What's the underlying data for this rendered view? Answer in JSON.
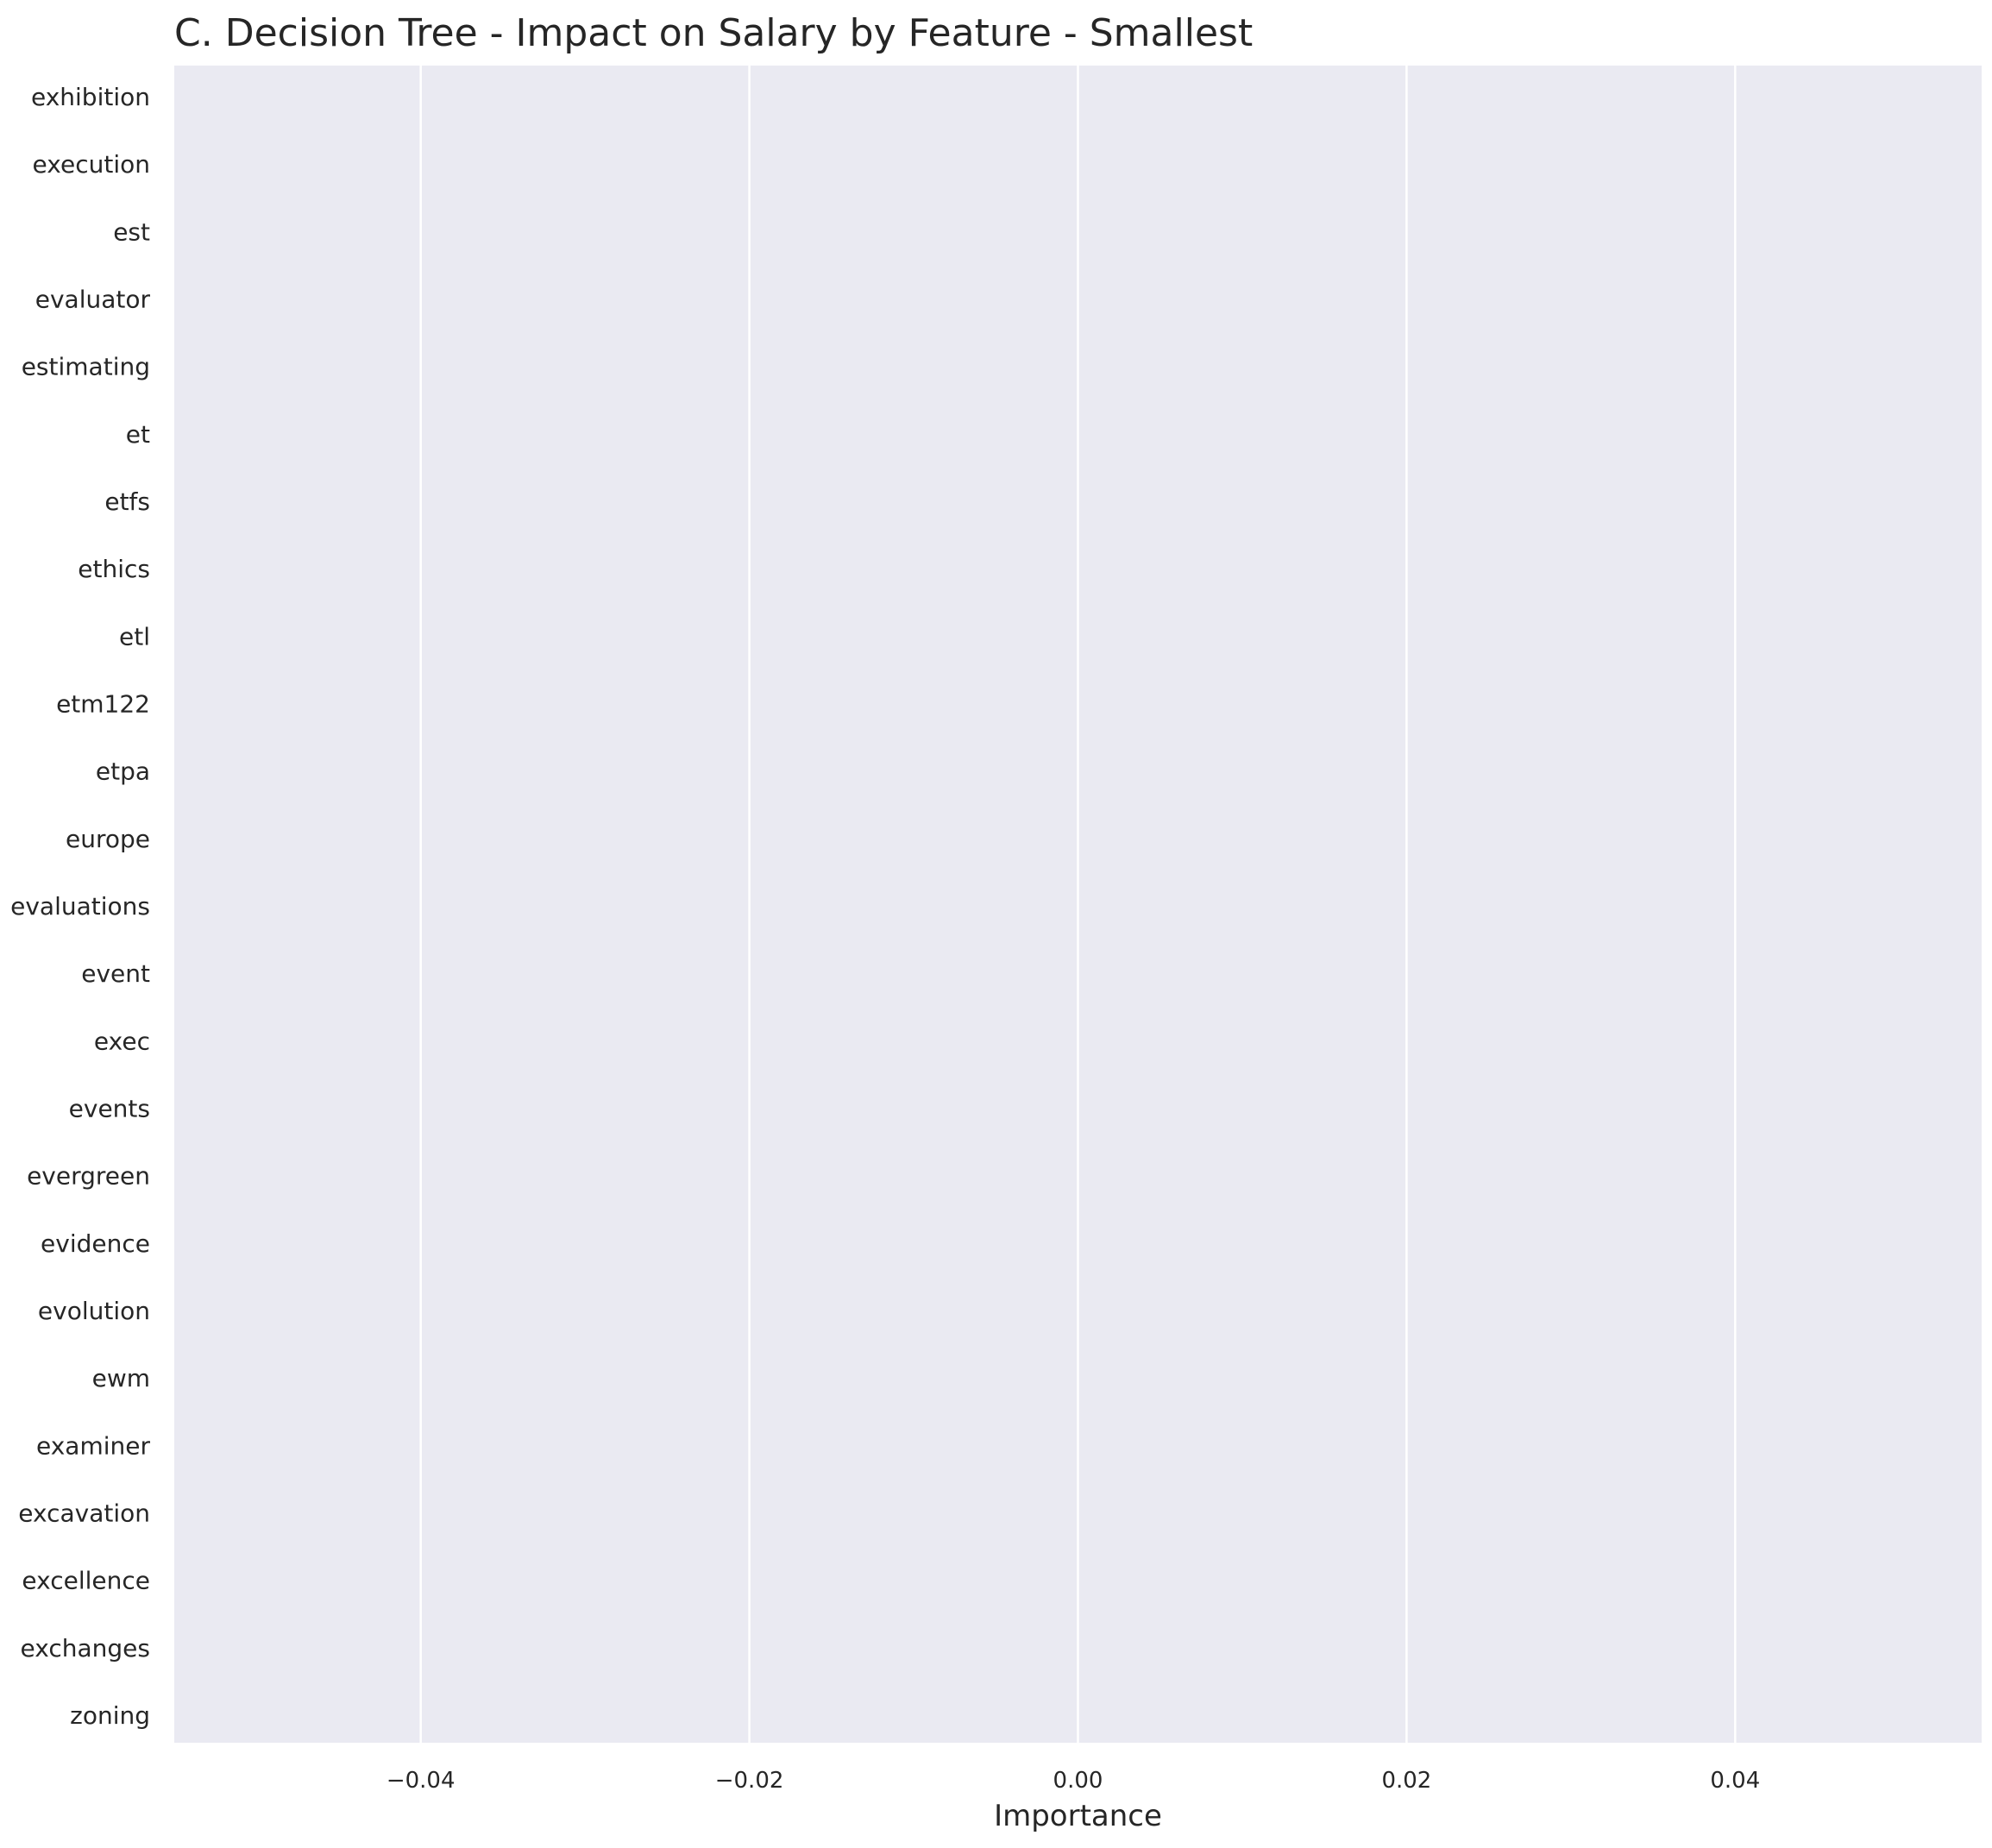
{
  "chart_data": {
    "type": "bar",
    "orientation": "horizontal",
    "title": "C. Decision Tree - Impact on Salary by Feature - Smallest",
    "xlabel": "Importance",
    "ylabel": "",
    "categories": [
      "exhibition",
      "execution",
      "est",
      "evaluator",
      "estimating",
      "et",
      "etfs",
      "ethics",
      "etl",
      "etm122",
      "etpa",
      "europe",
      "evaluations",
      "event",
      "exec",
      "events",
      "evergreen",
      "evidence",
      "evolution",
      "ewm",
      "examiner",
      "excavation",
      "excellence",
      "exchanges",
      "zoning"
    ],
    "values": [
      0,
      0,
      0,
      0,
      0,
      0,
      0,
      0,
      0,
      0,
      0,
      0,
      0,
      0,
      0,
      0,
      0,
      0,
      0,
      0,
      0,
      0,
      0,
      0,
      0
    ],
    "xlim": [
      -0.055,
      0.055
    ],
    "xticks": [
      -0.04,
      -0.02,
      0.0,
      0.02,
      0.04
    ],
    "xtick_labels": [
      "−0.04",
      "−0.02",
      "0.00",
      "0.02",
      "0.04"
    ],
    "grid": true,
    "legend": "none",
    "colors": {
      "plot_background": "#eaeaf2",
      "grid": "#ffffff",
      "text": "#262626",
      "bar": "#4c72b0"
    }
  }
}
